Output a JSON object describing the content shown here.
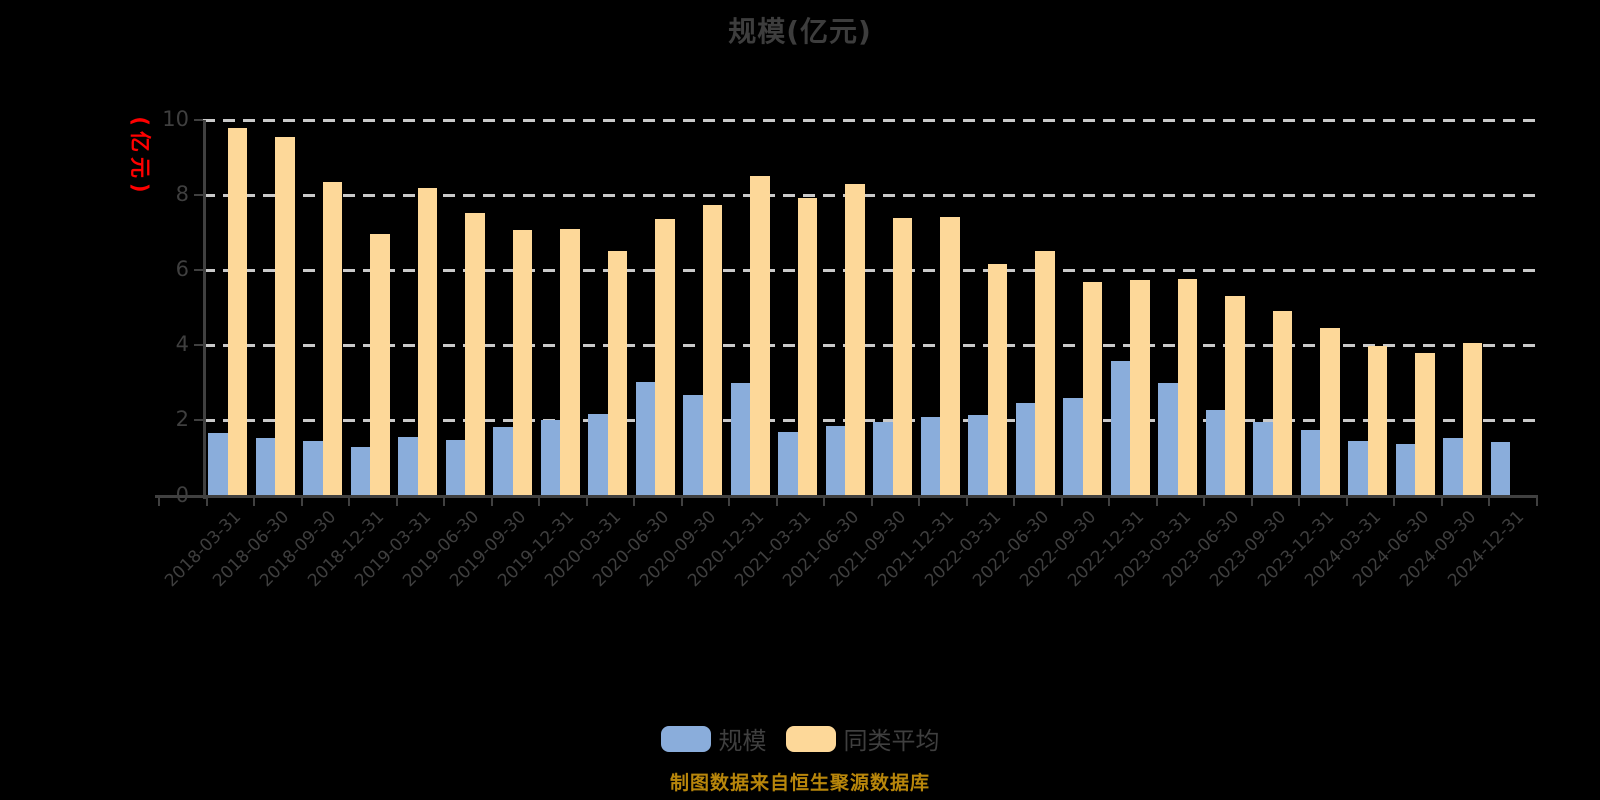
{
  "title": "规模(亿元)",
  "y_axis": {
    "unit_label": "(亿元)",
    "tick_labels": [
      "0",
      "2",
      "4",
      "6",
      "8",
      "10"
    ],
    "tick_values": [
      0,
      2,
      4,
      6,
      8,
      10
    ]
  },
  "legend": {
    "items": [
      {
        "label": "规模",
        "color": "#8aaddb"
      },
      {
        "label": "同类平均",
        "color": "#fdd899"
      }
    ]
  },
  "footer": "制图数据来自恒生聚源数据库",
  "colors": {
    "background": "#000000",
    "bar_blue": "#8aaddb",
    "bar_yellow": "#fdd899",
    "gridline": "#c9c9c9",
    "axis": "#404040",
    "text": "#3f3f3f",
    "y_unit_red": "#ff0000",
    "footer_orange": "#b8860b"
  },
  "chart_data": {
    "type": "bar",
    "title": "规模(亿元)",
    "ylabel": "(亿元)",
    "ylim": [
      0,
      10
    ],
    "grid": "dashed-horizontal",
    "legend_position": "bottom-center",
    "categories": [
      "2018-03-31",
      "2018-06-30",
      "2018-09-30",
      "2018-12-31",
      "2019-03-31",
      "2019-06-30",
      "2019-09-30",
      "2019-12-31",
      "2020-03-31",
      "2020-06-30",
      "2020-09-30",
      "2020-12-31",
      "2021-03-31",
      "2021-06-30",
      "2021-09-30",
      "2021-12-31",
      "2022-03-31",
      "2022-06-30",
      "2022-09-30",
      "2022-12-31",
      "2023-03-31",
      "2023-06-30",
      "2023-09-30",
      "2023-12-31",
      "2024-03-31",
      "2024-06-30",
      "2024-09-30",
      "2024-12-31"
    ],
    "series": [
      {
        "name": "规模",
        "color": "#8aaddb",
        "values": [
          1.66,
          1.53,
          1.45,
          1.29,
          1.55,
          1.47,
          1.82,
          2.01,
          2.18,
          3.02,
          2.68,
          2.99,
          1.7,
          1.86,
          1.95,
          2.09,
          2.15,
          2.46,
          2.6,
          3.59,
          3.0,
          2.29,
          1.97,
          1.75,
          1.44,
          1.36,
          1.53,
          1.42
        ]
      },
      {
        "name": "同类平均",
        "color": "#fdd899",
        "values": [
          9.8,
          9.56,
          8.34,
          6.96,
          8.2,
          7.53,
          7.07,
          7.1,
          6.52,
          7.36,
          7.73,
          8.5,
          7.92,
          8.29,
          7.38,
          7.42,
          6.17,
          6.51,
          5.69,
          5.74,
          5.77,
          5.32,
          4.92,
          4.46,
          3.97,
          3.8,
          4.07,
          null
        ]
      }
    ]
  }
}
